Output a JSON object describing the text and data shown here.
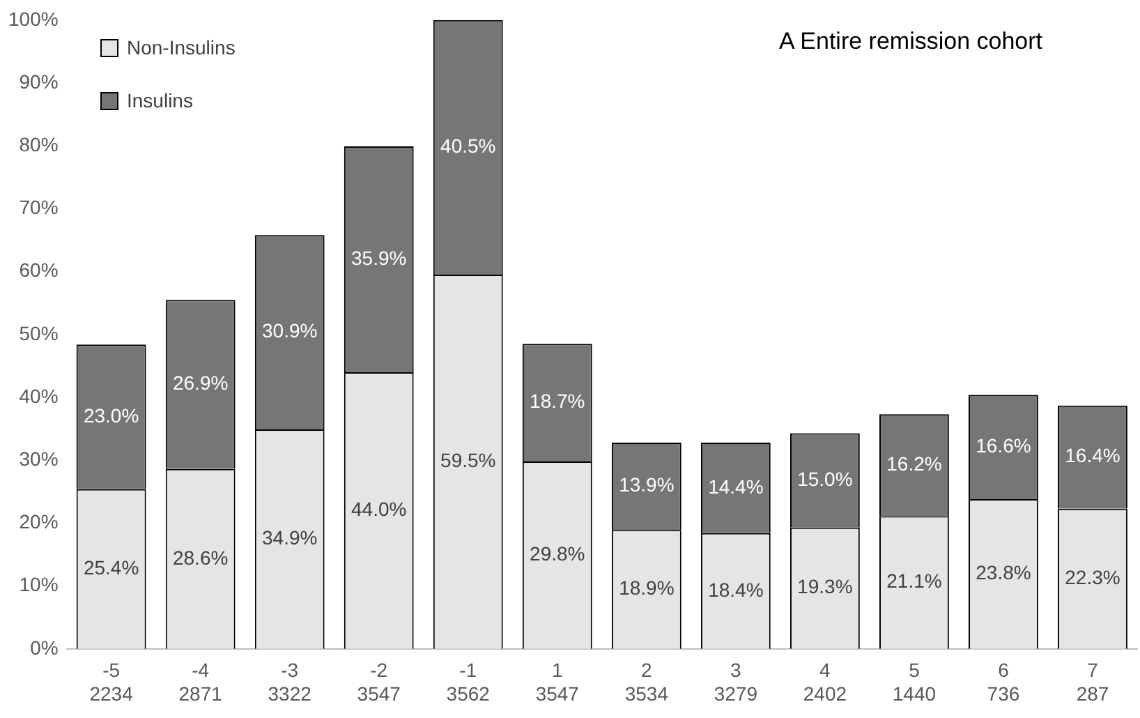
{
  "chart_data": {
    "type": "bar",
    "title": "A Entire remission cohort",
    "stacked": true,
    "categories": [
      "-5\n2234",
      "-4\n2871",
      "-3\n3322",
      "-2\n3547",
      "-1\n3562",
      "1\n3547",
      "2\n3534",
      "3\n3279",
      "4\n2402",
      "5\n1440",
      "6\n736",
      "7\n287"
    ],
    "series": [
      {
        "name": "Non-Insulins",
        "color": "#e7e4e6",
        "values": [
          25.4,
          28.6,
          34.9,
          44.0,
          59.5,
          29.8,
          18.9,
          18.4,
          19.3,
          21.1,
          23.8,
          22.3
        ],
        "value_labels": [
          "25.4%",
          "28.6%",
          "34.9%",
          "44.0%",
          "59.5%",
          "29.8%",
          "18.9%",
          "18.4%",
          "19.3%",
          "21.1%",
          "23.8%",
          "22.3%"
        ]
      },
      {
        "name": "Insulins",
        "color": "#767676",
        "values": [
          23.0,
          26.9,
          30.9,
          35.9,
          40.5,
          18.7,
          13.9,
          14.4,
          15.0,
          16.2,
          16.6,
          16.4
        ],
        "value_labels": [
          "23.0%",
          "26.9%",
          "30.9%",
          "35.9%",
          "40.5%",
          "18.7%",
          "13.9%",
          "14.4%",
          "15.0%",
          "16.2%",
          "16.6%",
          "16.4%"
        ]
      }
    ],
    "ylim": [
      0,
      100
    ],
    "yticks": [
      {
        "value": 0,
        "label": "0%"
      },
      {
        "value": 10,
        "label": "10%"
      },
      {
        "value": 20,
        "label": "20%"
      },
      {
        "value": 30,
        "label": "30%"
      },
      {
        "value": 40,
        "label": "40%"
      },
      {
        "value": 50,
        "label": "50%"
      },
      {
        "value": 60,
        "label": "60%"
      },
      {
        "value": 70,
        "label": "70%"
      },
      {
        "value": 80,
        "label": "80%"
      },
      {
        "value": 90,
        "label": "90%"
      },
      {
        "value": 100,
        "label": "100%"
      }
    ],
    "grid": false,
    "legend": "top left"
  }
}
